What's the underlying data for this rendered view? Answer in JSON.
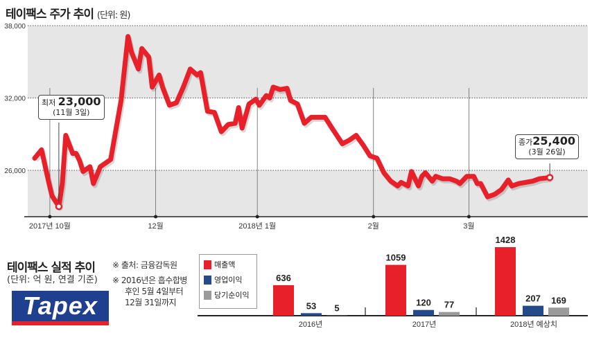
{
  "price_title": "테이팩스 주가 추이",
  "price_unit": "(단위: 원)",
  "low_callout": {
    "label": "최저",
    "value": "23,000",
    "date": "(11월 3일)"
  },
  "close_callout": {
    "label": "종가",
    "value": "25,400",
    "date": "(3월 26일)"
  },
  "results_title": "테이팩스 실적 추이",
  "results_unit": "(단위: 억 원, 연결 기준)",
  "notes": [
    "※ 출처: 금융감독원",
    "※  2016년은 흡수합병",
    "후인 5월 4일부터",
    "12월 31일까지"
  ],
  "logo_text": "Tapex",
  "colors": {
    "line": "#e8202a",
    "revenue": "#e8202a",
    "operating": "#244a8a",
    "net": "#9a9a9a",
    "band": "#e6e6e6"
  },
  "chart_data": [
    {
      "type": "line",
      "title": "테이팩스 주가 추이",
      "ylabel": "원",
      "ylim": [
        22200,
        38000
      ],
      "xlim": [
        0,
        162
      ],
      "x_unit": "approx. trading-day index",
      "yticks": [
        {
          "v": 38000,
          "label": "38,000"
        },
        {
          "v": 32000,
          "label": "32,000"
        },
        {
          "v": 26000,
          "label": "26,000"
        }
      ],
      "xticks": [
        {
          "v": 6.4,
          "label": "2017년 10월"
        },
        {
          "v": 37,
          "label": "12월"
        },
        {
          "v": 66.4,
          "label": "2018년 1월"
        },
        {
          "v": 100,
          "label": "2월"
        },
        {
          "v": 127.6,
          "label": "3월"
        }
      ],
      "grid": true,
      "x": [
        2,
        4,
        6,
        7,
        9,
        10,
        11,
        13,
        14,
        15,
        16,
        18,
        19,
        21,
        24,
        27,
        29,
        30,
        32,
        33,
        35,
        36,
        38,
        39,
        41,
        43,
        45,
        47,
        49,
        50,
        52,
        54,
        56,
        58,
        60,
        61,
        62,
        64,
        66,
        67,
        69,
        70,
        71,
        73,
        75,
        76,
        78,
        80,
        82,
        84,
        86,
        88,
        91,
        93,
        95,
        97,
        99,
        101,
        103,
        105,
        107,
        108,
        110,
        111,
        113,
        114,
        115,
        117,
        118,
        120,
        122,
        124,
        125,
        127,
        129,
        130,
        131,
        133,
        135,
        137,
        139,
        140,
        142,
        144,
        146,
        148,
        151
      ],
      "y": [
        27000,
        27700,
        25100,
        23900,
        23000,
        24900,
        28900,
        27400,
        27400,
        26800,
        25900,
        26300,
        24900,
        26300,
        26900,
        31800,
        37100,
        35800,
        34400,
        36100,
        35400,
        32900,
        33900,
        32900,
        31400,
        31600,
        32900,
        34400,
        33900,
        34100,
        30900,
        30800,
        29200,
        29800,
        29900,
        31200,
        29500,
        31500,
        31900,
        31400,
        32200,
        32000,
        32900,
        32700,
        32800,
        31800,
        31500,
        29900,
        30400,
        30400,
        30400,
        29500,
        28200,
        28500,
        28900,
        28100,
        27200,
        27000,
        25800,
        25100,
        24700,
        25000,
        24700,
        25900,
        24700,
        25500,
        25800,
        25100,
        25500,
        25300,
        25300,
        25100,
        24900,
        25500,
        25500,
        24900,
        24900,
        23800,
        24000,
        24400,
        25200,
        24700,
        24900,
        25000,
        25100,
        25300,
        25400
      ],
      "annotations": [
        {
          "x": 9,
          "y": 23000,
          "text": "최저 23,000 (11월 3일)"
        },
        {
          "x": 151,
          "y": 25400,
          "text": "종가 25,400 (3월 26일)"
        }
      ]
    },
    {
      "type": "bar",
      "title": "테이팩스 실적 추이",
      "categories": [
        "2016년",
        "2017년",
        "2018년 예상치"
      ],
      "series": [
        {
          "name": "매출액",
          "values": [
            636,
            1059,
            1428
          ]
        },
        {
          "name": "영업이익",
          "values": [
            53,
            120,
            207
          ]
        },
        {
          "name": "당기순이익",
          "values": [
            5,
            77,
            169
          ]
        }
      ],
      "ylim": [
        0,
        1428
      ],
      "legend": "left"
    }
  ]
}
